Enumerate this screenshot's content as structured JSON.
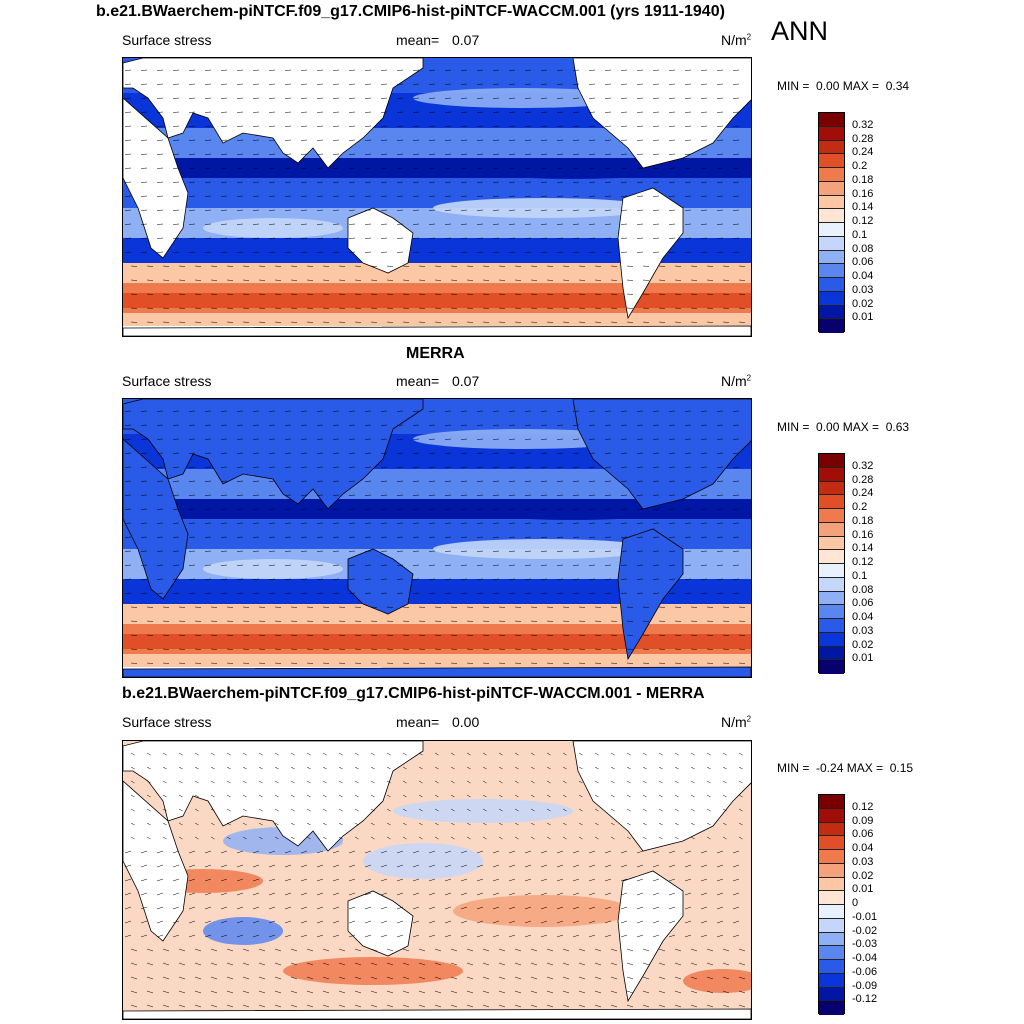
{
  "season": "ANN",
  "colors": {
    "seq": [
      "#08006e",
      "#0017a6",
      "#0a35d8",
      "#2a5ae8",
      "#5a86f0",
      "#8fb0f5",
      "#c4d7fa",
      "#e9f1fd",
      "#ffe6d4",
      "#fcc7a5",
      "#f5a27a",
      "#ef7a4e",
      "#e04f26",
      "#c22c12",
      "#a00e07",
      "#7a0000"
    ],
    "ocean_dark": "#0a2fbf",
    "land": "#ffffff"
  },
  "panels": [
    {
      "title": "b.e21.BWaerchem-piNTCF.f09_g17.CMIP6-hist-piNTCF-WACCM.001 (yrs 1911-1940)",
      "variable": "Surface stress",
      "mean_label": "mean=",
      "mean_value": "0.07",
      "units": "N/m",
      "units_sup": "2",
      "min_label": "MIN =",
      "min_value": "0.00",
      "max_label": "MAX =",
      "max_value": "0.34",
      "levels": [
        "0.32",
        "0.28",
        "0.24",
        "0.2",
        "0.18",
        "0.16",
        "0.14",
        "0.12",
        "0.1",
        "0.08",
        "0.06",
        "0.04",
        "0.03",
        "0.02",
        "0.01"
      ]
    },
    {
      "title": "MERRA",
      "variable": "Surface stress",
      "mean_label": "mean=",
      "mean_value": "0.07",
      "units": "N/m",
      "units_sup": "2",
      "min_label": "MIN =",
      "min_value": "0.00",
      "max_label": "MAX =",
      "max_value": "0.63",
      "levels": [
        "0.32",
        "0.28",
        "0.24",
        "0.2",
        "0.18",
        "0.16",
        "0.14",
        "0.12",
        "0.1",
        "0.08",
        "0.06",
        "0.04",
        "0.03",
        "0.02",
        "0.01"
      ]
    },
    {
      "title": "b.e21.BWaerchem-piNTCF.f09_g17.CMIP6-hist-piNTCF-WACCM.001 - MERRA",
      "variable": "Surface stress",
      "mean_label": "mean=",
      "mean_value": "0.00",
      "units": "N/m",
      "units_sup": "2",
      "min_label": "MIN =",
      "min_value": "-0.24",
      "max_label": "MAX =",
      "max_value": "0.15",
      "levels": [
        "0.12",
        "0.09",
        "0.06",
        "0.04",
        "0.03",
        "0.02",
        "0.01",
        "0",
        "-0.01",
        "-0.02",
        "-0.03",
        "-0.04",
        "-0.06",
        "-0.09",
        "-0.12"
      ]
    }
  ]
}
